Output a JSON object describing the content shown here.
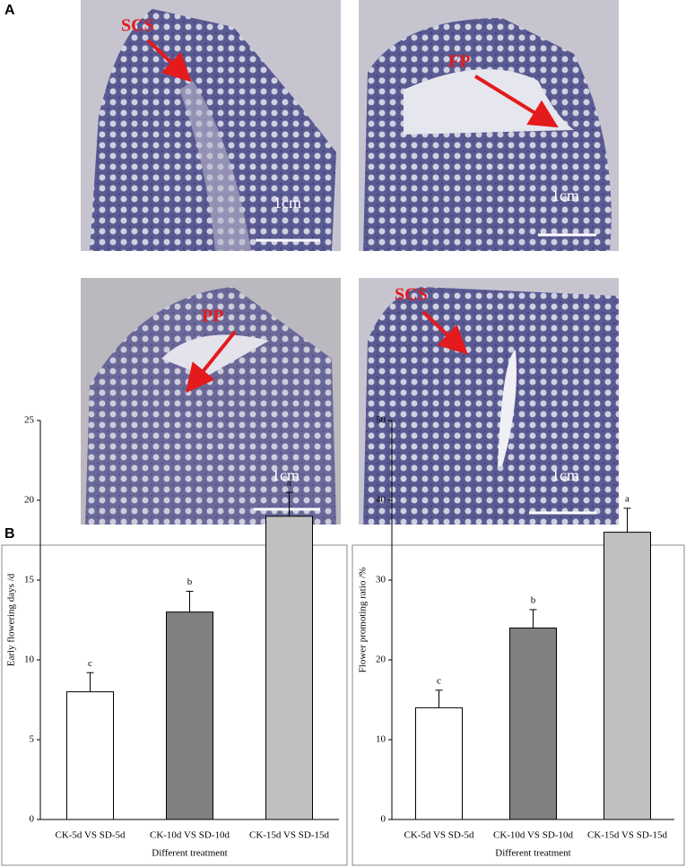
{
  "panel_a": {
    "label": "A",
    "images": [
      {
        "arrow_label": "SCS",
        "scale_label": "1cm"
      },
      {
        "arrow_label": "FP",
        "scale_label": "1cm"
      },
      {
        "arrow_label": "PP",
        "scale_label": "1cm"
      },
      {
        "arrow_label": "SCS",
        "scale_label": "1cm"
      }
    ]
  },
  "panel_b": {
    "label": "B"
  },
  "chart_data": [
    {
      "type": "bar",
      "ylabel": "Early flowering days /d",
      "xlabel": "Different treatment",
      "categories": [
        "CK-5d VS SD-5d",
        "CK-10d VS SD-10d",
        "CK-15d VS SD-15d"
      ],
      "values": [
        8,
        13,
        19
      ],
      "errors": [
        1.2,
        1.3,
        1.5
      ],
      "annotations": [
        "c",
        "b",
        "a"
      ],
      "colors": [
        "#ffffff",
        "#808080",
        "#c0c0c0"
      ],
      "ylim": [
        0,
        25
      ],
      "yticks": [
        0,
        5,
        10,
        15,
        20,
        25
      ]
    },
    {
      "type": "bar",
      "ylabel": "Flower promoting ratio /%",
      "xlabel": "Different treatment",
      "categories": [
        "CK-5d VS SD-5d",
        "CK-10d VS SD-10d",
        "CK-15d VS SD-15d"
      ],
      "values": [
        14,
        24,
        36
      ],
      "errors": [
        2.2,
        2.3,
        3
      ],
      "annotations": [
        "c",
        "b",
        "a"
      ],
      "colors": [
        "#ffffff",
        "#808080",
        "#c0c0c0"
      ],
      "ylim": [
        0,
        50
      ],
      "yticks": [
        0,
        10,
        20,
        30,
        40,
        50
      ]
    }
  ]
}
